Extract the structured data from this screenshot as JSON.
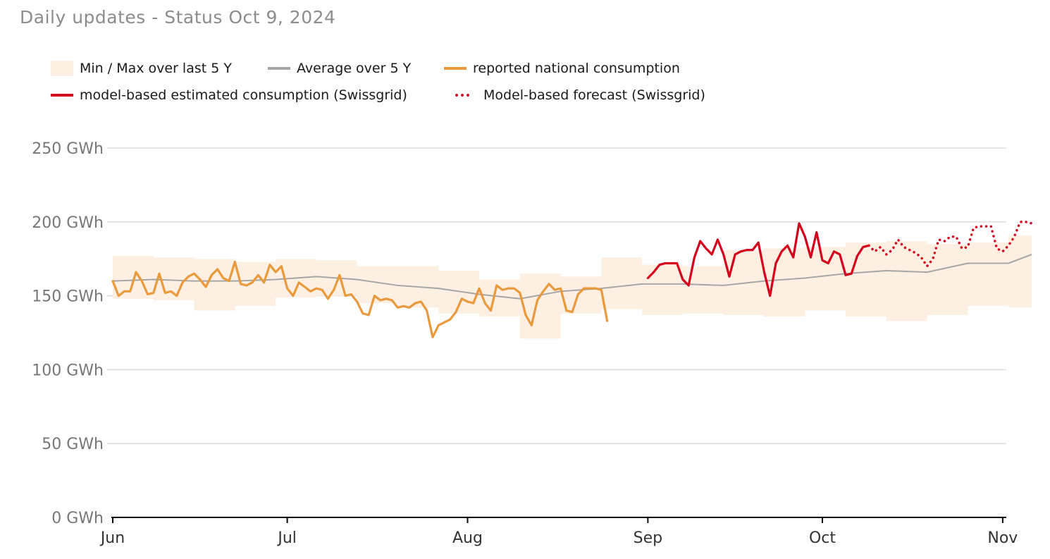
{
  "title": "Daily updates - Status Oct 9, 2024",
  "colors": {
    "band": "#fdefe2",
    "average": "#a6a6a6",
    "reported": "#e89a3c",
    "estimated": "#d4001c",
    "forecast": "#d4001c",
    "grid": "#dddddd",
    "axis": "#000000"
  },
  "legend": {
    "band": "Min / Max over last 5 Y",
    "average": "Average over 5 Y",
    "reported": "reported national consumption",
    "estimated": "model-based estimated consumption (Swissgrid)",
    "forecast": "Model-based forecast (Swissgrid)"
  },
  "chart_data": {
    "type": "line",
    "x_start": "Jun 1",
    "ylim": [
      0,
      250
    ],
    "y_ticks": [
      "0 GWh",
      "50 GWh",
      "100 GWh",
      "150 GWh",
      "200 GWh",
      "250 GWh"
    ],
    "y_tick_values": [
      0,
      50,
      100,
      150,
      200,
      250
    ],
    "x_ticks": [
      "Jun",
      "Jul",
      "Aug",
      "Sep",
      "Oct",
      "Nov"
    ],
    "x_tick_values": [
      "Jun 1",
      "Jul 1",
      "Aug 1",
      "Sep 1",
      "Oct 1",
      "Nov 1"
    ],
    "grid": "horizontal",
    "legend_position": "top-left",
    "series": [
      {
        "key": "band",
        "name": "Min / Max over last 5 Y",
        "x": [
          "Jun 1",
          "Jun 8",
          "Jun 15",
          "Jun 22",
          "Jun 29",
          "Jul 6",
          "Jul 13",
          "Jul 20",
          "Jul 27",
          "Aug 3",
          "Aug 10",
          "Aug 17",
          "Aug 24",
          "Aug 31",
          "Sep 7",
          "Sep 14",
          "Sep 21",
          "Sep 28",
          "Oct 5",
          "Oct 12",
          "Oct 19",
          "Oct 26",
          "Nov 2",
          "Nov 6"
        ],
        "min": [
          148,
          147,
          140,
          143,
          149,
          150,
          145,
          142,
          138,
          136,
          121,
          138,
          141,
          137,
          138,
          137,
          136,
          140,
          136,
          133,
          137,
          143,
          142,
          155
        ],
        "max": [
          177,
          176,
          175,
          173,
          175,
          174,
          170,
          170,
          167,
          161,
          165,
          163,
          176,
          171,
          170,
          181,
          182,
          183,
          186,
          187,
          185,
          186,
          191,
          199
        ]
      },
      {
        "key": "average",
        "name": "Average over 5 Y",
        "x": [
          "Jun 1",
          "Jun 8",
          "Jun 15",
          "Jun 22",
          "Jun 29",
          "Jul 6",
          "Jul 13",
          "Jul 20",
          "Jul 27",
          "Aug 3",
          "Aug 10",
          "Aug 17",
          "Aug 24",
          "Aug 31",
          "Sep 7",
          "Sep 14",
          "Sep 21",
          "Sep 28",
          "Oct 5",
          "Oct 12",
          "Oct 19",
          "Oct 26",
          "Nov 2",
          "Nov 6"
        ],
        "values": [
          160,
          161,
          160,
          160,
          161,
          163,
          161,
          157,
          155,
          151,
          148,
          153,
          155,
          158,
          158,
          157,
          160,
          162,
          165,
          167,
          166,
          172,
          172,
          178
        ]
      },
      {
        "key": "reported",
        "name": "reported national consumption",
        "x_start": "Jun 1",
        "values": [
          160,
          150,
          153,
          153,
          166,
          160,
          151,
          152,
          165,
          152,
          153,
          150,
          159,
          163,
          165,
          161,
          156,
          164,
          168,
          162,
          160,
          173,
          158,
          157,
          159,
          164,
          159,
          171,
          166,
          170,
          155,
          150,
          159,
          156,
          153,
          155,
          154,
          148,
          154,
          164,
          150,
          151,
          146,
          138,
          137,
          150,
          147,
          148,
          147,
          142,
          143,
          142,
          145,
          146,
          140,
          122,
          130,
          132,
          134,
          139,
          148,
          146,
          145,
          155,
          145,
          140,
          157,
          154,
          155,
          155,
          152,
          137,
          130,
          147,
          153,
          158,
          154,
          155,
          140,
          139,
          151,
          155,
          155,
          155,
          154,
          133
        ]
      },
      {
        "key": "estimated",
        "name": "model-based estimated consumption (Swissgrid)",
        "x_start": "Sep 1",
        "values": [
          162,
          166,
          171,
          172,
          172,
          172,
          161,
          157,
          176,
          187,
          182,
          178,
          188,
          178,
          163,
          178,
          180,
          181,
          181,
          186,
          166,
          150,
          172,
          180,
          184,
          176,
          199,
          190,
          176,
          193,
          174,
          172,
          180,
          178,
          164,
          165,
          177,
          183,
          184
        ]
      },
      {
        "key": "forecast",
        "name": "Model-based forecast (Swissgrid)",
        "x_start": "Oct 9",
        "values": [
          184,
          180,
          183,
          178,
          181,
          188,
          183,
          181,
          179,
          176,
          170,
          175,
          188,
          187,
          190,
          190,
          182,
          183,
          196,
          197,
          197,
          197,
          182,
          180,
          184,
          190,
          200,
          200,
          199
        ]
      }
    ]
  }
}
